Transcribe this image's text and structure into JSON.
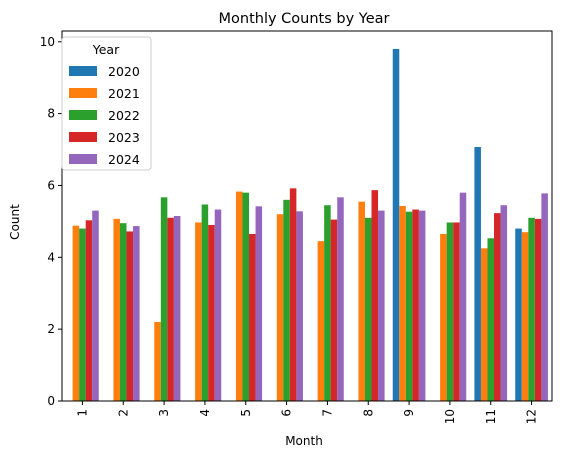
{
  "chart_data": {
    "type": "bar",
    "title": "Monthly Counts by Year",
    "xlabel": "Month",
    "ylabel": "Count",
    "ylim": [
      0,
      10.3
    ],
    "yticks": [
      0,
      2,
      4,
      6,
      8,
      10
    ],
    "categories": [
      "1",
      "2",
      "3",
      "4",
      "5",
      "6",
      "7",
      "8",
      "9",
      "10",
      "11",
      "12"
    ],
    "legend_title": "Year",
    "legend_position": "top-left",
    "grid": false,
    "series": [
      {
        "name": "2020",
        "color": "#1f77b4",
        "values": [
          null,
          null,
          null,
          null,
          null,
          null,
          null,
          null,
          9.8,
          null,
          7.07,
          4.8
        ]
      },
      {
        "name": "2021",
        "color": "#ff7f0e",
        "values": [
          4.88,
          5.07,
          2.2,
          4.97,
          5.83,
          5.2,
          4.45,
          5.55,
          5.43,
          4.65,
          4.25,
          4.7
        ]
      },
      {
        "name": "2022",
        "color": "#2ca02c",
        "values": [
          4.8,
          4.95,
          5.67,
          5.47,
          5.8,
          5.6,
          5.45,
          5.1,
          5.27,
          4.97,
          4.53,
          5.1
        ]
      },
      {
        "name": "2023",
        "color": "#d62728",
        "values": [
          5.03,
          4.72,
          5.1,
          4.9,
          4.65,
          5.92,
          5.05,
          5.87,
          5.33,
          4.97,
          5.23,
          5.07
        ]
      },
      {
        "name": "2024",
        "color": "#9467bd",
        "values": [
          5.3,
          4.87,
          5.15,
          5.33,
          5.42,
          5.28,
          5.67,
          5.3,
          5.3,
          5.8,
          5.45,
          5.78
        ]
      }
    ]
  }
}
